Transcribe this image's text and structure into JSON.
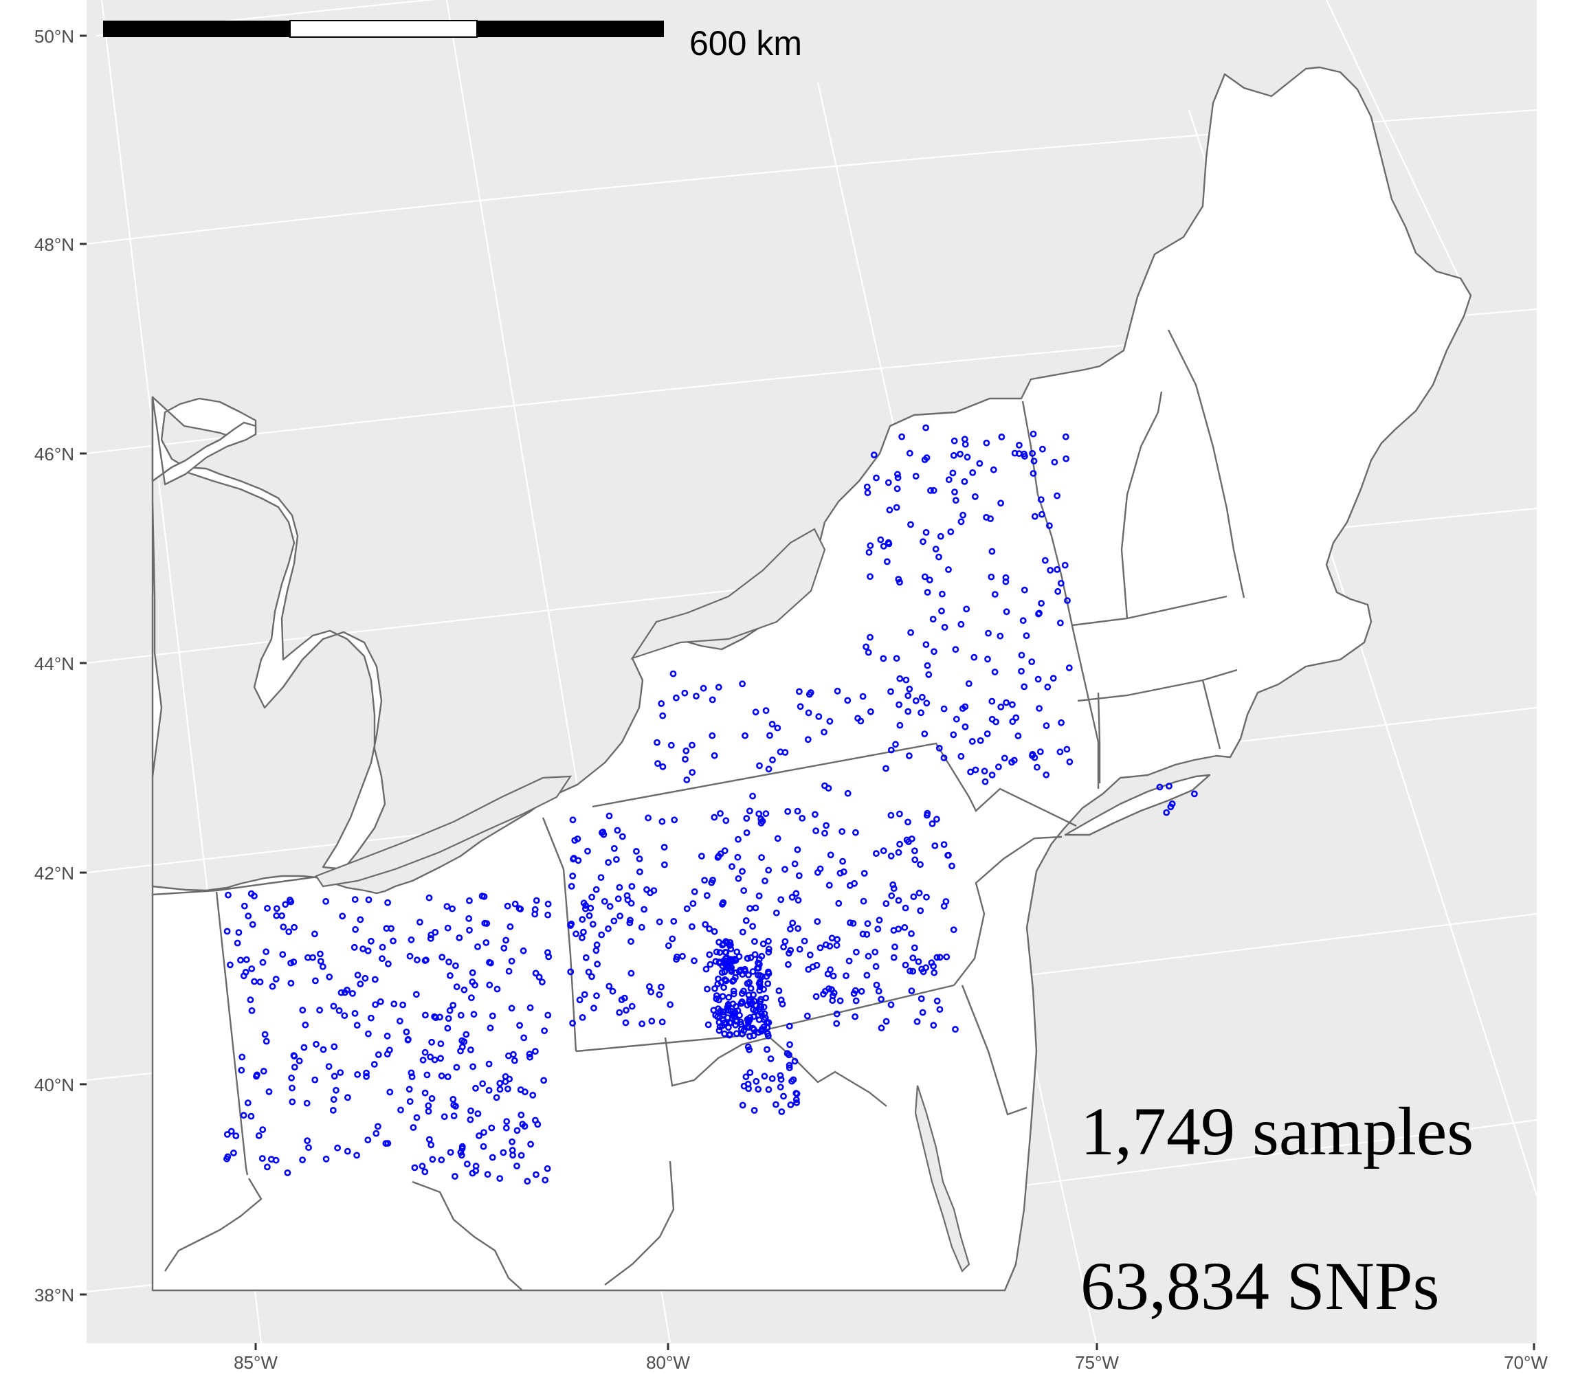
{
  "map": {
    "y_axis_labels": [
      "50°N",
      "48°N",
      "46°N",
      "44°N",
      "42°N",
      "40°N",
      "38°N"
    ],
    "x_axis_labels": [
      "85°W",
      "80°W",
      "75°W",
      "70°W"
    ],
    "scale_bar": {
      "label": "600 km"
    },
    "annotations": {
      "samples": "1,749 samples",
      "snps": "63,834 SNPs"
    },
    "colors": {
      "panel": "#ebebeb",
      "grid": "#ffffff",
      "land": "#ffffff",
      "border": "#6b6b6b",
      "points": "#0000ff"
    },
    "point_count": 1749
  }
}
